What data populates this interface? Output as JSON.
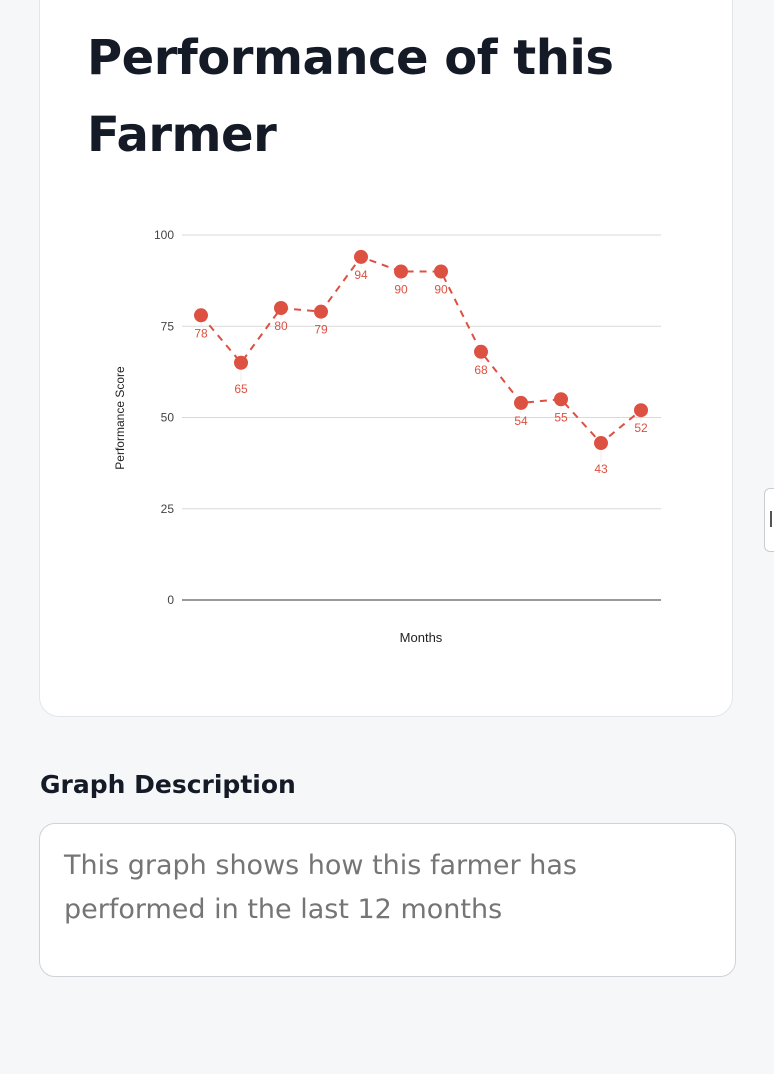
{
  "card": {
    "title": "Performance of this Farmer"
  },
  "chart_data": {
    "type": "line",
    "title": "",
    "xlabel": "Months",
    "ylabel": "Performance Score",
    "ylim": [
      0,
      100
    ],
    "yticks": [
      0,
      25,
      50,
      75,
      100
    ],
    "grid": true,
    "legend": "none",
    "line_style": "dashed",
    "series": [
      {
        "values": [
          78,
          65,
          80,
          79,
          94,
          90,
          90,
          68,
          54,
          55,
          43,
          52
        ],
        "color": "#dc5142"
      }
    ],
    "data_labels": true
  },
  "description": {
    "heading": "Graph Description",
    "placeholder": "This graph shows how this farmer has performed in the last 12 months"
  },
  "colors": {
    "series": "#dc5142",
    "title_text": "#151a27",
    "placeholder_text": "#a4a8ae",
    "background": "#f6f7f9"
  }
}
